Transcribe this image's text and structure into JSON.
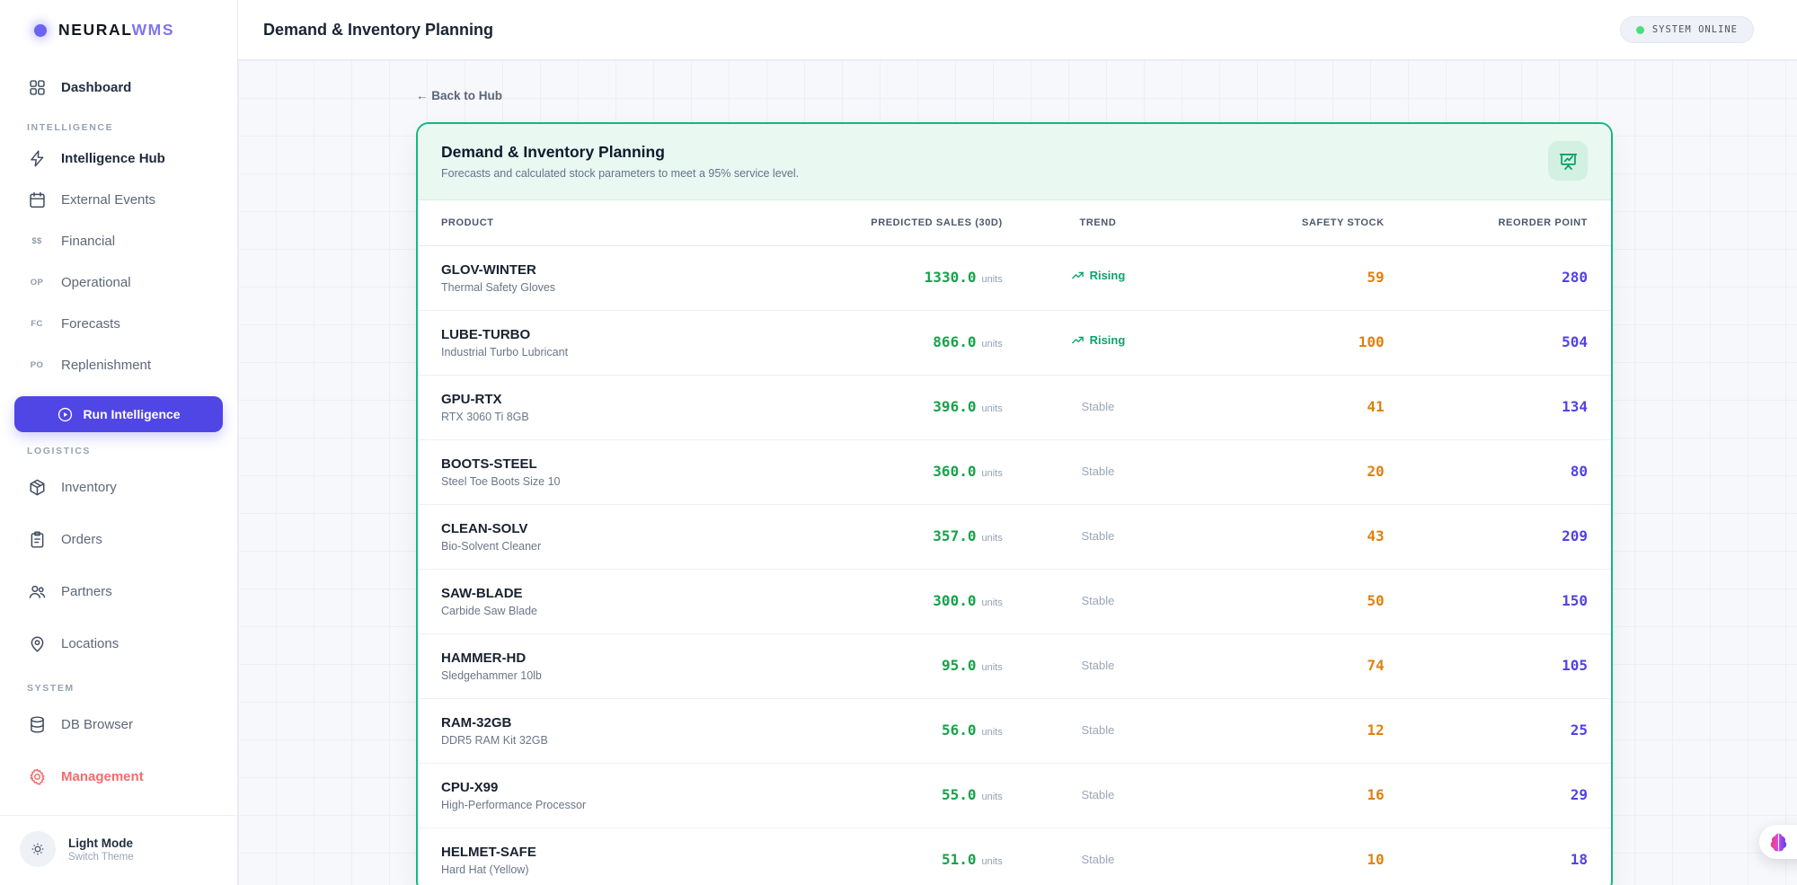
{
  "sidebar": {
    "logo": {
      "icon": "brand-dot-icon",
      "text_primary": "NEURAL",
      "text_accent": "WMS"
    },
    "primary_items": [
      {
        "label": "Dashboard",
        "icon": "grid-icon"
      }
    ],
    "sections": [
      {
        "label": "INTELLIGENCE",
        "items": [
          {
            "label": "Intelligence Hub",
            "icon": "bolt-icon",
            "emphasis": true
          },
          {
            "label": "External Events",
            "icon": "calendar-icon"
          },
          {
            "label": "Financial",
            "icon": "text:$$"
          },
          {
            "label": "Operational",
            "icon": "text:OP"
          },
          {
            "label": "Forecasts",
            "icon": "text:FC"
          },
          {
            "label": "Replenishment",
            "icon": "text:PO"
          }
        ],
        "footer_button": {
          "label": "Run Intelligence",
          "icon": "play-circle-icon"
        }
      },
      {
        "label": "LOGISTICS",
        "items": [
          {
            "label": "Inventory",
            "icon": "cube-icon"
          },
          {
            "label": "Orders",
            "icon": "clipboard-icon"
          },
          {
            "label": "Partners",
            "icon": "users-icon"
          },
          {
            "label": "Locations",
            "icon": "map-pin-icon"
          }
        ]
      },
      {
        "label": "SYSTEM",
        "items": [
          {
            "label": "DB Browser",
            "icon": "database-icon"
          },
          {
            "label": "Management",
            "icon": "gear-icon",
            "danger": true
          }
        ]
      }
    ],
    "theme_toggle": {
      "icon": "sun-icon",
      "title": "Light Mode",
      "subtitle": "Switch Theme"
    }
  },
  "header": {
    "title": "Demand & Inventory Planning",
    "status": {
      "label": "SYSTEM ONLINE",
      "dot_color": "#4ade80"
    }
  },
  "main": {
    "back_link": "← Back to Hub",
    "panel": {
      "title": "Demand & Inventory Planning",
      "subtitle": "Forecasts and calculated stock parameters to meet a 95% service level.",
      "icon": "presentation-chart-icon",
      "accent_color": "#10b981"
    },
    "table": {
      "columns": [
        "PRODUCT",
        "PREDICTED SALES (30D)",
        "TREND",
        "SAFETY STOCK",
        "REORDER POINT"
      ],
      "units_suffix": "units",
      "rows": [
        {
          "sku": "GLOV-WINTER",
          "name": "Thermal Safety Gloves",
          "predicted": "1330.0",
          "trend": "Rising",
          "safety_stock": "59",
          "reorder_point": "280"
        },
        {
          "sku": "LUBE-TURBO",
          "name": "Industrial Turbo Lubricant",
          "predicted": "866.0",
          "trend": "Rising",
          "safety_stock": "100",
          "reorder_point": "504"
        },
        {
          "sku": "GPU-RTX",
          "name": "RTX 3060 Ti 8GB",
          "predicted": "396.0",
          "trend": "Stable",
          "safety_stock": "41",
          "reorder_point": "134"
        },
        {
          "sku": "BOOTS-STEEL",
          "name": "Steel Toe Boots Size 10",
          "predicted": "360.0",
          "trend": "Stable",
          "safety_stock": "20",
          "reorder_point": "80"
        },
        {
          "sku": "CLEAN-SOLV",
          "name": "Bio-Solvent Cleaner",
          "predicted": "357.0",
          "trend": "Stable",
          "safety_stock": "43",
          "reorder_point": "209"
        },
        {
          "sku": "SAW-BLADE",
          "name": "Carbide Saw Blade",
          "predicted": "300.0",
          "trend": "Stable",
          "safety_stock": "50",
          "reorder_point": "150"
        },
        {
          "sku": "HAMMER-HD",
          "name": "Sledgehammer 10lb",
          "predicted": "95.0",
          "trend": "Stable",
          "safety_stock": "74",
          "reorder_point": "105"
        },
        {
          "sku": "RAM-32GB",
          "name": "DDR5 RAM Kit 32GB",
          "predicted": "56.0",
          "trend": "Stable",
          "safety_stock": "12",
          "reorder_point": "25"
        },
        {
          "sku": "CPU-X99",
          "name": "High-Performance Processor",
          "predicted": "55.0",
          "trend": "Stable",
          "safety_stock": "16",
          "reorder_point": "29"
        },
        {
          "sku": "HELMET-SAFE",
          "name": "Hard Hat (Yellow)",
          "predicted": "51.0",
          "trend": "Stable",
          "safety_stock": "10",
          "reorder_point": "18"
        }
      ]
    }
  },
  "floating_button": {
    "icon": "brain-icon"
  },
  "colors": {
    "accent": "#5046e5",
    "card_border": "#10b981",
    "predicted_green": "#16a34a",
    "safety_orange": "#e0810e",
    "reorder_indigo": "#5143e4",
    "rising_green": "#0da271",
    "danger_red": "#f26d6d"
  }
}
